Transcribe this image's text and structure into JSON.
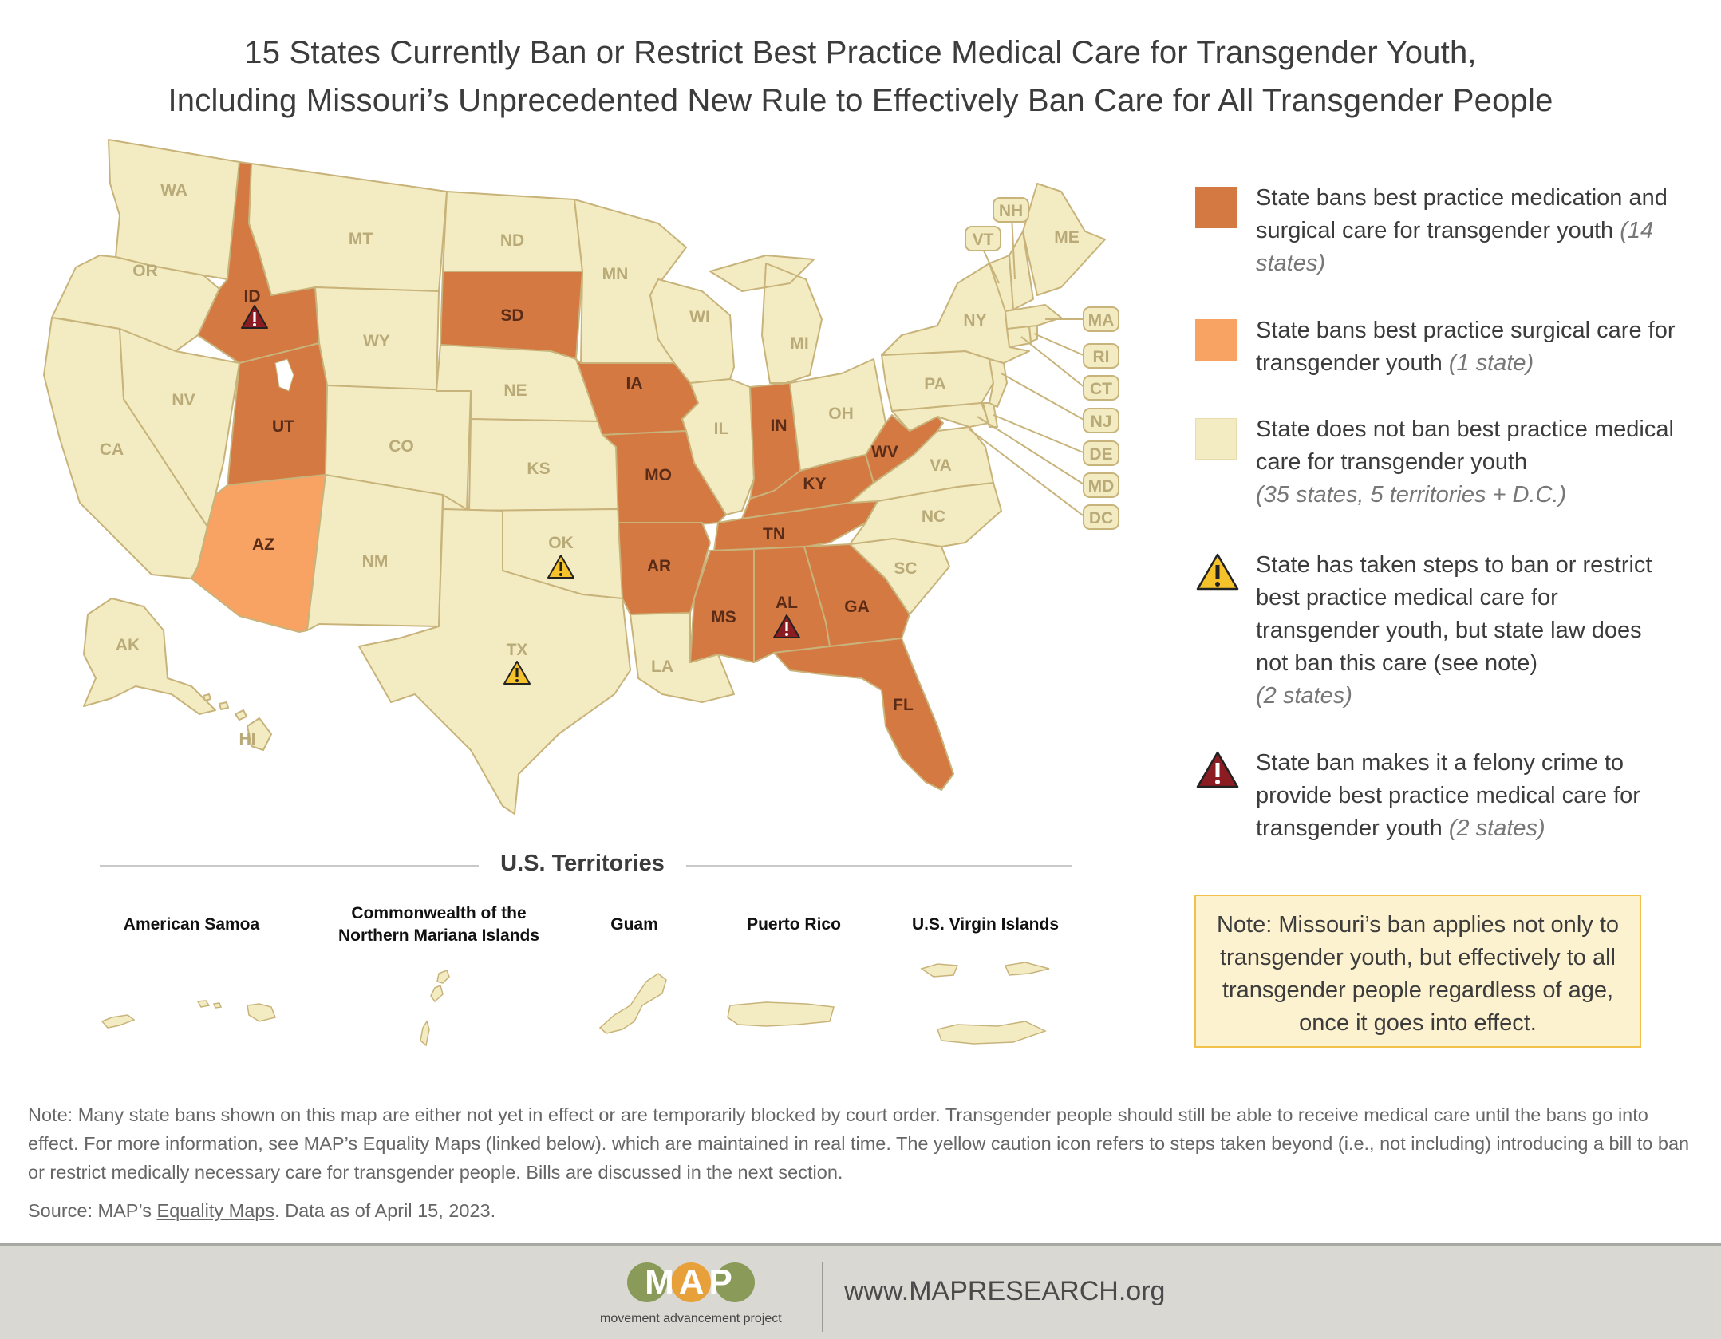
{
  "title": {
    "line1": "15 States Currently Ban or Restrict Best Practice Medical Care for Transgender Youth,",
    "line2": "Including Missouri’s Unprecedented New Rule to Effectively Ban Care for All Transgender People"
  },
  "colors": {
    "ban_medication_surgical": "#d57943",
    "ban_surgical": "#f8a364",
    "no_ban": "#f3ecc2",
    "steps_taken_icon": "#f6c22b",
    "felony_icon": "#8b1c22",
    "note_box_fill": "#fdf2cf",
    "note_box_border": "#f2c14c"
  },
  "states": {
    "WA": "WA",
    "OR": "OR",
    "CA": "CA",
    "NV": "NV",
    "ID": "ID",
    "MT": "MT",
    "WY": "WY",
    "UT": "UT",
    "AZ": "AZ",
    "CO": "CO",
    "NM": "NM",
    "ND": "ND",
    "SD": "SD",
    "NE": "NE",
    "KS": "KS",
    "OK": "OK",
    "TX": "TX",
    "MN": "MN",
    "IA": "IA",
    "MO": "MO",
    "AR": "AR",
    "LA": "LA",
    "WI": "WI",
    "IL": "IL",
    "MI": "MI",
    "IN": "IN",
    "OH": "OH",
    "KY": "KY",
    "TN": "TN",
    "MS": "MS",
    "AL": "AL",
    "GA": "GA",
    "FL": "FL",
    "SC": "SC",
    "NC": "NC",
    "VA": "VA",
    "WV": "WV",
    "PA": "PA",
    "NY": "NY",
    "ME": "ME",
    "AK": "AK",
    "HI": "HI",
    "VT": "VT",
    "NH": "NH",
    "MA": "MA",
    "RI": "RI",
    "CT": "CT",
    "NJ": "NJ",
    "DE": "DE",
    "MD": "MD",
    "DC": "DC"
  },
  "state_status": {
    "ban_medication_surgical": [
      "ID",
      "UT",
      "SD",
      "IA",
      "MO",
      "AR",
      "IN",
      "KY",
      "TN",
      "MS",
      "AL",
      "GA",
      "FL",
      "WV"
    ],
    "ban_surgical": [
      "AZ"
    ],
    "steps_taken_icon": [
      "OK",
      "TX"
    ],
    "felony_icon": [
      "ID",
      "AL"
    ]
  },
  "legend": {
    "item1_text": "State bans best practice medication and surgical care for transgender youth ",
    "item1_count": "(14 states)",
    "item2_text": "State bans best practice surgical care for transgender youth ",
    "item2_count": "(1 state)",
    "item3_text": "State does not ban best practice medical care for transgender youth",
    "item3_count": "(35 states, 5 territories + D.C.)",
    "item4_text": "State has taken steps to ban or restrict best practice medical care for transgender youth, but state law does not ban this care (see note)",
    "item4_count": "(2 states)",
    "item5_text": "State ban makes it a felony crime to provide best practice medical care for transgender youth ",
    "item5_count": "(2 states)"
  },
  "note_box": "Note: Missouri’s ban applies not only to transgender youth, but effectively to all transgender people regardless of age, once it goes into effect.",
  "territories": {
    "heading": "U.S. Territories",
    "american_samoa": "American Samoa",
    "cnmi_line1": "Commonwealth of the",
    "cnmi_line2": "Northern Mariana Islands",
    "guam": "Guam",
    "puerto_rico": "Puerto Rico",
    "usvi": "U.S. Virgin Islands"
  },
  "footnote": "Note: Many state bans shown on this map are either not yet in effect or are temporarily blocked by court order. Transgender people should still be able to receive medical care until the bans go into effect. For more information, see MAP’s Equality Maps (linked below). which are maintained in real time. The yellow caution icon refers to steps taken beyond (i.e., not including) introducing a bill to ban or restrict medically necessary care for transgender people. Bills are discussed in the next section.",
  "source": {
    "prefix": "Source: MAP’s ",
    "link": "Equality Maps",
    "suffix": ". Data as of April 15, 2023."
  },
  "footer": {
    "logo_text": "MAP",
    "tagline": "movement advancement project",
    "url": "www.MAPRESEARCH.org"
  }
}
